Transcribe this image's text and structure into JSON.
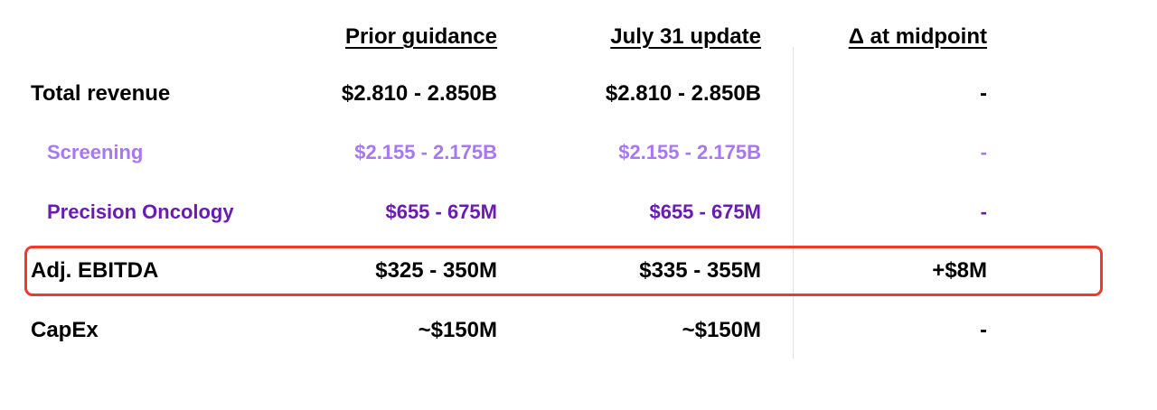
{
  "headers": {
    "prior": "Prior guidance",
    "update": "July 31 update",
    "delta": "Δ at midpoint"
  },
  "colors": {
    "text": "#000000",
    "screening": "#a877f2",
    "precision_oncology": "#6a1bb3",
    "highlight_border": "#ef3a2b",
    "divider": "#e3e3e3"
  },
  "rows": [
    {
      "label": "Total revenue",
      "prior": "$2.810 - 2.850B",
      "update": "$2.810 - 2.850B",
      "delta": "-"
    },
    {
      "label": "Screening",
      "prior": "$2.155 - 2.175B",
      "update": "$2.155 - 2.175B",
      "delta": "-"
    },
    {
      "label": "Precision Oncology",
      "prior": "$655 - 675M",
      "update": "$655 - 675M",
      "delta": "-"
    },
    {
      "label": "Adj. EBITDA",
      "prior": "$325 - 350M",
      "update": "$335 - 355M",
      "delta": "+$8M"
    },
    {
      "label": "CapEx",
      "prior": "~$150M",
      "update": "~$150M",
      "delta": "-"
    }
  ]
}
